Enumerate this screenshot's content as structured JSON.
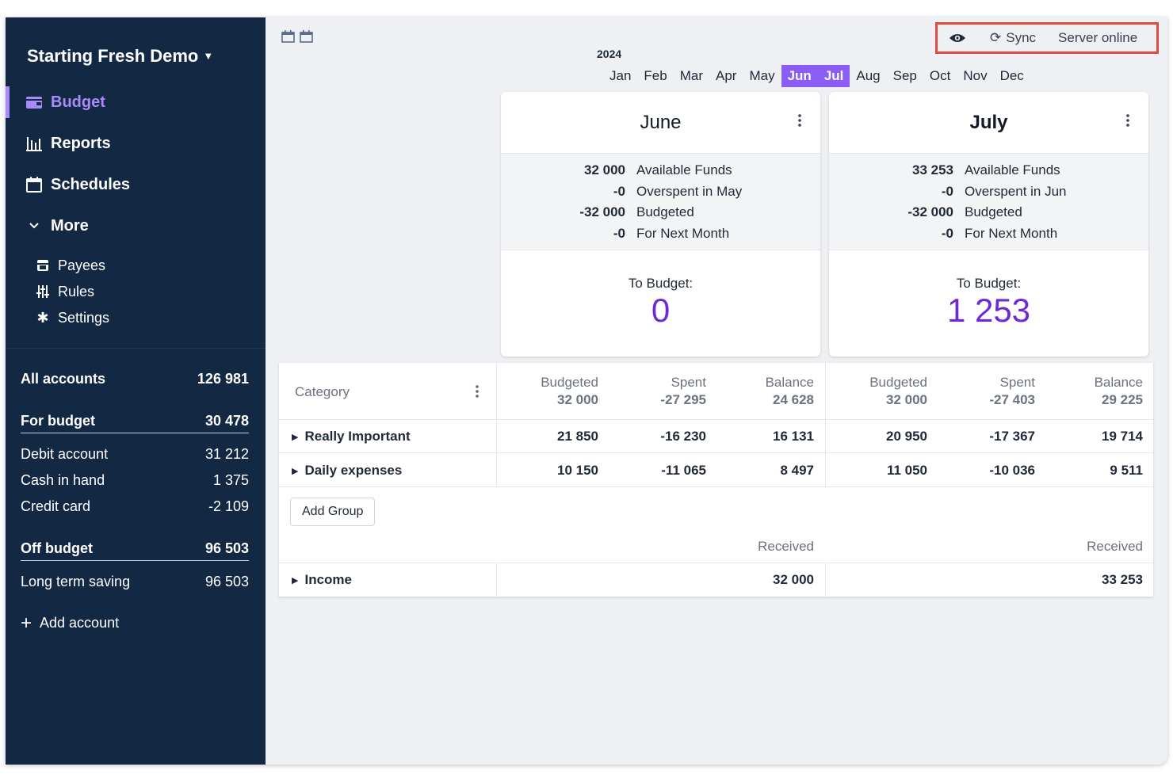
{
  "sidebar": {
    "budget_name": "Starting Fresh Demo",
    "nav": [
      {
        "label": "Budget",
        "icon": "wallet-icon",
        "active": true
      },
      {
        "label": "Reports",
        "icon": "bar-chart-icon"
      },
      {
        "label": "Schedules",
        "icon": "calendar-icon"
      },
      {
        "label": "More",
        "icon": "chevron-down-icon"
      }
    ],
    "sub_nav": [
      {
        "label": "Payees",
        "icon": "store-icon"
      },
      {
        "label": "Rules",
        "icon": "sliders-icon"
      },
      {
        "label": "Settings",
        "icon": "gear-icon"
      }
    ],
    "accounts": {
      "all": {
        "name": "All accounts",
        "balance": "126 981"
      },
      "for_budget": {
        "name": "For budget",
        "balance": "30 478"
      },
      "on_budget": [
        {
          "name": "Debit account",
          "balance": "31 212"
        },
        {
          "name": "Cash in hand",
          "balance": "1 375"
        },
        {
          "name": "Credit card",
          "balance": "-2 109"
        }
      ],
      "off_budget": {
        "name": "Off budget",
        "balance": "96 503"
      },
      "off_budget_list": [
        {
          "name": "Long term saving",
          "balance": "96 503"
        }
      ]
    },
    "add_account": "Add account"
  },
  "topbar": {
    "sync_label": "Sync",
    "server_status": "Server online"
  },
  "calendar": {
    "year": "2024",
    "months": [
      "Jan",
      "Feb",
      "Mar",
      "Apr",
      "May",
      "Jun",
      "Jul",
      "Aug",
      "Sep",
      "Oct",
      "Nov",
      "Dec"
    ],
    "selected": [
      "Jun",
      "Jul"
    ]
  },
  "cards": [
    {
      "title": "June",
      "rows": [
        {
          "value": "32 000",
          "label": "Available Funds"
        },
        {
          "value": "-0",
          "label": "Overspent in May"
        },
        {
          "value": "-32 000",
          "label": "Budgeted"
        },
        {
          "value": "-0",
          "label": "For Next Month"
        }
      ],
      "to_budget_label": "To Budget:",
      "to_budget_value": "0"
    },
    {
      "title": "July",
      "rows": [
        {
          "value": "33 253",
          "label": "Available Funds"
        },
        {
          "value": "-0",
          "label": "Overspent in Jun"
        },
        {
          "value": "-32 000",
          "label": "Budgeted"
        },
        {
          "value": "-0",
          "label": "For Next Month"
        }
      ],
      "to_budget_label": "To Budget:",
      "to_budget_value": "1 253"
    }
  ],
  "table": {
    "category_header": "Category",
    "months": [
      {
        "headers": [
          {
            "label": "Budgeted",
            "value": "32 000"
          },
          {
            "label": "Spent",
            "value": "-27 295"
          },
          {
            "label": "Balance",
            "value": "24 628"
          }
        ],
        "received_label": "Received",
        "income": "32 000"
      },
      {
        "headers": [
          {
            "label": "Budgeted",
            "value": "32 000"
          },
          {
            "label": "Spent",
            "value": "-27 403"
          },
          {
            "label": "Balance",
            "value": "29 225"
          }
        ],
        "received_label": "Received",
        "income": "33 253"
      }
    ],
    "groups": [
      {
        "name": "Really Important",
        "values": [
          "21 850",
          "-16 230",
          "16 131",
          "20 950",
          "-17 367",
          "19 714"
        ]
      },
      {
        "name": "Daily expenses",
        "values": [
          "10 150",
          "-11 065",
          "8 497",
          "11 050",
          "-10 036",
          "9 511"
        ]
      }
    ],
    "add_group": "Add Group",
    "income_name": "Income"
  }
}
